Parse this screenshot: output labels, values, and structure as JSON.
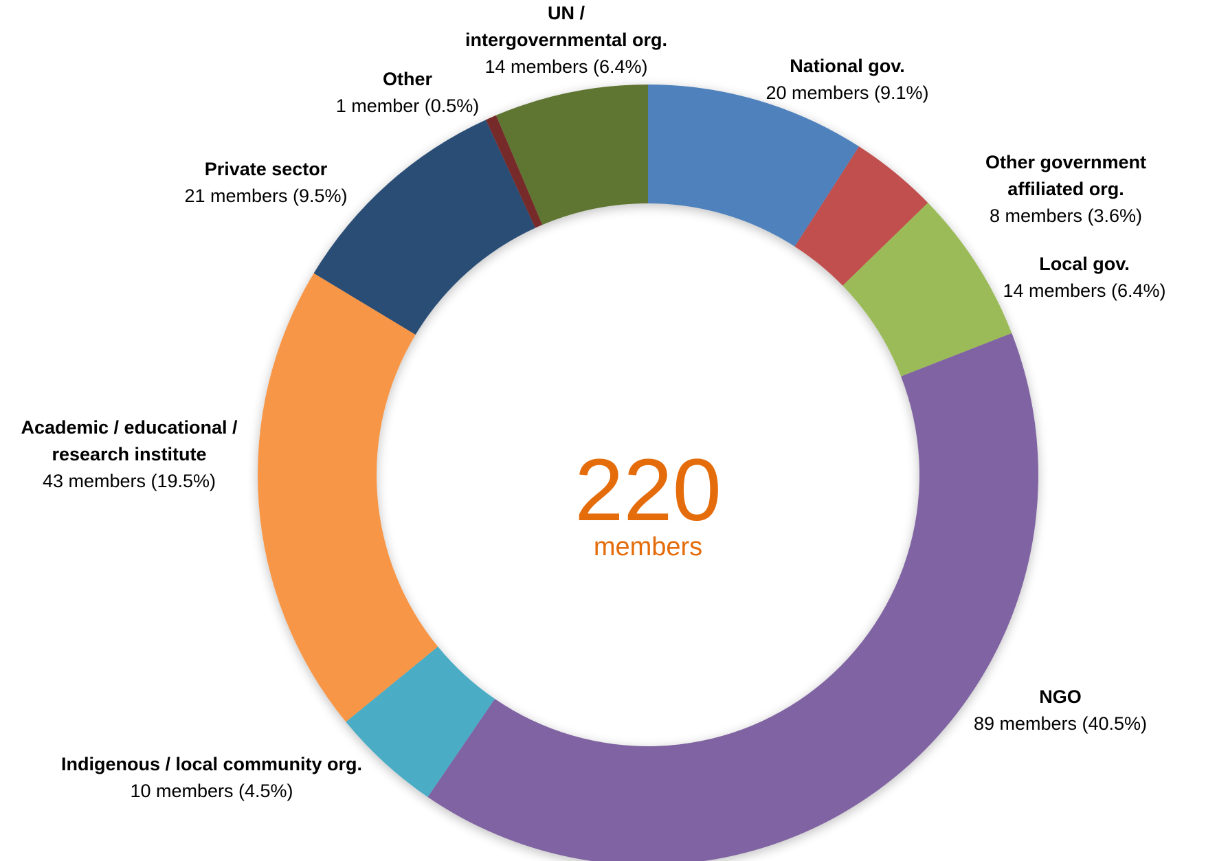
{
  "chart_data": {
    "type": "donut",
    "categories": [
      "National gov.",
      "Other government affiliated org.",
      "Local gov.",
      "NGO",
      "Indigenous / local community org.",
      "Academic / educational /\nresearch institute",
      "Private sector",
      "Other",
      "UN /\nintergovernmental org."
    ],
    "values": [
      20,
      8,
      14,
      89,
      10,
      43,
      21,
      1,
      14
    ],
    "value_labels": [
      "20 members (9.1%)",
      "8 members (3.6%)",
      "14 members (6.4%)",
      "89 members (40.5%)",
      "10 members (4.5%)",
      "43 members (19.5%)",
      "21 members (9.5%)",
      "1 member (0.5%)",
      "14 members (6.4%)"
    ],
    "colors": [
      "#4f81bd",
      "#c0504d",
      "#9bbb59",
      "#8064a2",
      "#4bacc6",
      "#f79646",
      "#2c4d75",
      "#772c2a",
      "#5f7530"
    ],
    "center_value": 220,
    "center_label": "members"
  }
}
